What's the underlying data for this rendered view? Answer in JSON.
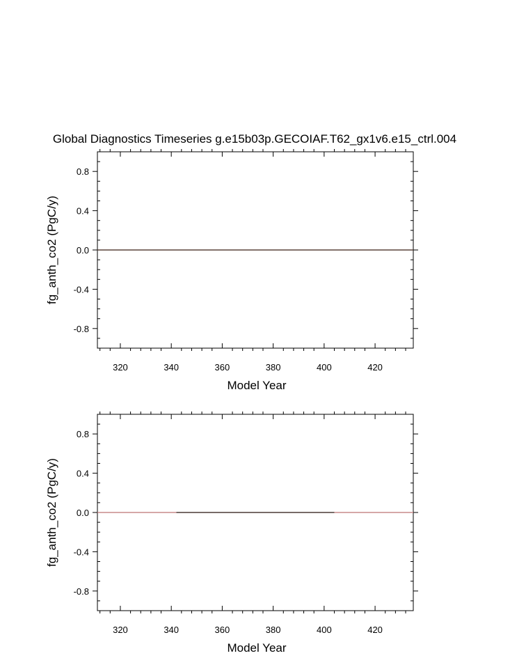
{
  "figure": {
    "title": "Global Diagnostics Timeseries g.e15b03p.GECOIAF.T62_gx1v6.e15_ctrl.004"
  },
  "chart_data": [
    {
      "type": "line",
      "title": "Global Diagnostics Timeseries g.e15b03p.GECOIAF.T62_gx1v6.e15_ctrl.004",
      "xlabel": "Model Year",
      "ylabel": "fg_anth_co2 (PgC/y)",
      "xlim": [
        311,
        435
      ],
      "ylim": [
        -1.0,
        1.0
      ],
      "x_ticks": [
        320,
        340,
        360,
        380,
        400,
        420
      ],
      "x_tick_labels": [
        "320",
        "340",
        "360",
        "380",
        "400",
        "420"
      ],
      "y_ticks": [
        -0.8,
        -0.4,
        0.0,
        0.4,
        0.8
      ],
      "y_tick_labels": [
        "-0.8",
        "-0.4",
        "0.0",
        "0.4",
        "0.8"
      ],
      "grid": false,
      "legend": "none",
      "series": [
        {
          "x": [
            311,
            435
          ],
          "y": [
            0.0,
            0.0
          ],
          "color": "#5a4238"
        }
      ]
    },
    {
      "type": "line",
      "title": "",
      "xlabel": "Model Year",
      "ylabel": "fg_anth_co2 (PgC/y)",
      "xlim": [
        311,
        435
      ],
      "ylim": [
        -1.0,
        1.0
      ],
      "x_ticks": [
        320,
        340,
        360,
        380,
        400,
        420
      ],
      "x_tick_labels": [
        "320",
        "340",
        "360",
        "380",
        "400",
        "420"
      ],
      "y_ticks": [
        -0.8,
        -0.4,
        0.0,
        0.4,
        0.8
      ],
      "y_tick_labels": [
        "-0.8",
        "-0.4",
        "0.0",
        "0.4",
        "0.8"
      ],
      "grid": false,
      "legend": "none",
      "series": [
        {
          "x": [
            311,
            342
          ],
          "y": [
            0.0,
            0.0
          ],
          "color": "#c98a8a"
        },
        {
          "x": [
            342,
            404
          ],
          "y": [
            0.0,
            0.0
          ],
          "color": "#4a3a35"
        },
        {
          "x": [
            404,
            435
          ],
          "y": [
            0.0,
            0.0
          ],
          "color": "#c98a8a"
        }
      ]
    }
  ]
}
